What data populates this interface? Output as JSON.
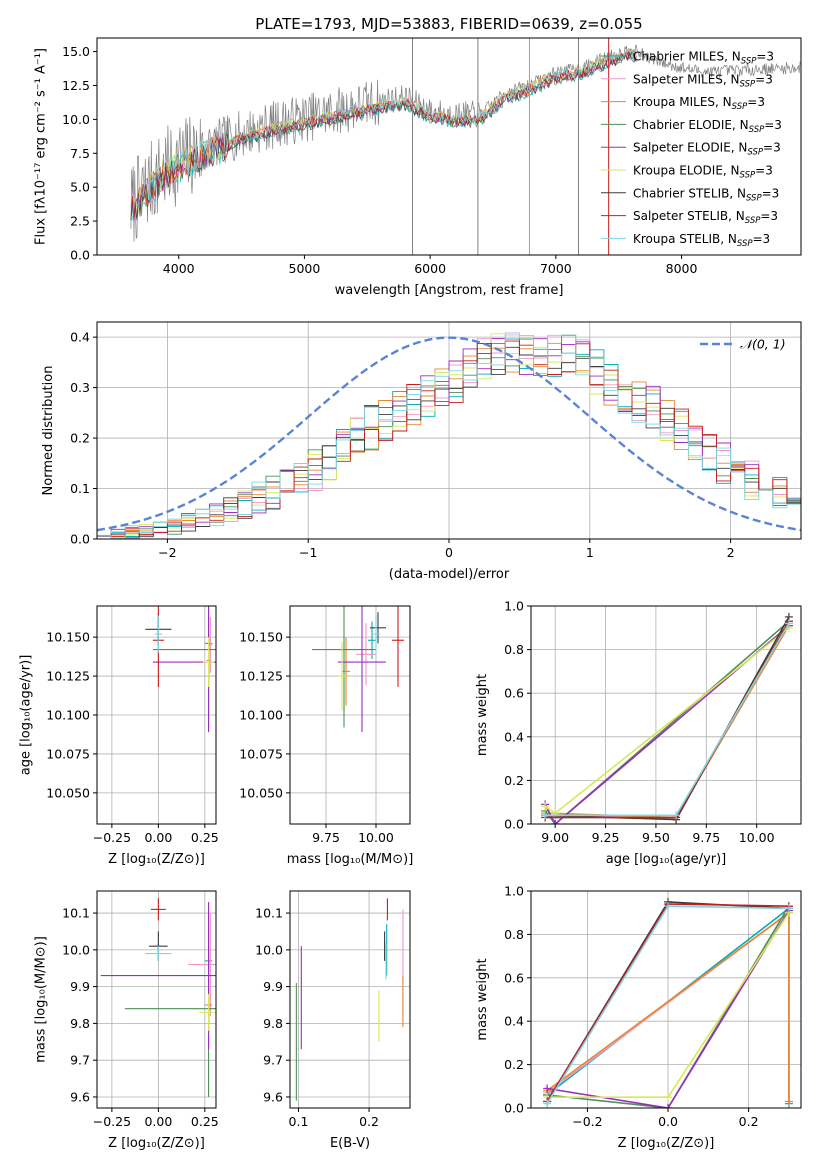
{
  "figure_title": "PLATE=1793, MJD=53883, FIBERID=0639, z=0.055",
  "legend_entries": [
    {
      "name": "Chabrier MILES",
      "suffix": "N",
      "sub": "SSP",
      "tail": "=3",
      "color": "#00ACB8"
    },
    {
      "name": "Salpeter MILES",
      "suffix": "N",
      "sub": "SSP",
      "tail": "=3",
      "color": "#F099C8"
    },
    {
      "name": "Kroupa MILES",
      "suffix": "N",
      "sub": "SSP",
      "tail": "=3",
      "color": "#E4892E"
    },
    {
      "name": "Chabrier ELODIE",
      "suffix": "N",
      "sub": "SSP",
      "tail": "=3",
      "color": "#4F8F55"
    },
    {
      "name": "Salpeter ELODIE",
      "suffix": "N",
      "sub": "SSP",
      "tail": "=3",
      "color": "#9B2DBE"
    },
    {
      "name": "Kroupa ELODIE",
      "suffix": "N",
      "sub": "SSP",
      "tail": "=3",
      "color": "#D8E858"
    },
    {
      "name": "Chabrier STELIB",
      "suffix": "N",
      "sub": "SSP",
      "tail": "=3",
      "color": "#3D3D3D"
    },
    {
      "name": "Salpeter STELIB",
      "suffix": "N",
      "sub": "SSP",
      "tail": "=3",
      "color": "#C81E1E"
    },
    {
      "name": "Kroupa STELIB",
      "suffix": "N",
      "sub": "SSP",
      "tail": "=3",
      "color": "#7FD6E0"
    }
  ],
  "chart_data": [
    {
      "id": "spectrum",
      "type": "line",
      "xlabel": "wavelength [Angstrom, rest frame]",
      "ylabel": "Flux [fλ10⁻¹⁷ erg cm⁻² s⁻¹ A⁻¹]",
      "xlim": [
        3350,
        8950
      ],
      "ylim": [
        0,
        16
      ],
      "xticks": [
        4000,
        5000,
        6000,
        7000,
        8000
      ],
      "xticklabels": [
        "4000",
        "5000",
        "6000",
        "7000",
        "8000"
      ],
      "yticks": [
        0,
        2.5,
        5,
        7.5,
        10,
        12.5,
        15
      ],
      "yticklabels": [
        "0.0",
        "2.5",
        "5.0",
        "7.5",
        "10.0",
        "12.5",
        "15.0"
      ],
      "data_color": "#808080",
      "model_color": "#7FD6E0",
      "spikes": [
        {
          "x": 5860,
          "color": "#808080"
        },
        {
          "x": 6380,
          "color": "#808080"
        },
        {
          "x": 6790,
          "color": "#C7A02E"
        },
        {
          "x": 7180,
          "color": "#808080"
        },
        {
          "x": 7420,
          "color": "#C81E1E"
        }
      ],
      "data_anchor_x": [
        3620,
        3700,
        3800,
        3900,
        4000,
        4200,
        4400,
        4600,
        4800,
        5000,
        5200,
        5400,
        5600,
        5800,
        6000,
        6200,
        6400,
        6600,
        6800,
        7000,
        7200,
        7400,
        7600,
        7800,
        8000,
        8200,
        8400,
        8600,
        8950
      ],
      "data_anchor_y": [
        3.6,
        4.5,
        5.5,
        6.3,
        6.9,
        7.8,
        8.6,
        9.2,
        9.7,
        10.1,
        10.5,
        10.9,
        11.3,
        11.6,
        10.6,
        10.3,
        10.4,
        12.0,
        12.6,
        13.5,
        13.8,
        14.6,
        15.2,
        14.3,
        13.8,
        13.5,
        13.6,
        13.7,
        13.8
      ]
    },
    {
      "id": "residuals",
      "type": "histogram",
      "xlabel": "(data-model)/error",
      "ylabel": "Normed distribution",
      "xlim": [
        -2.5,
        2.5
      ],
      "ylim": [
        0,
        0.43
      ],
      "xticks": [
        -2,
        -1,
        0,
        1,
        2
      ],
      "xticklabels": [
        "−2",
        "−1",
        "0",
        "1",
        "2"
      ],
      "yticks": [
        0,
        0.1,
        0.2,
        0.3,
        0.4
      ],
      "yticklabels": [
        "0.0",
        "0.1",
        "0.2",
        "0.3",
        "0.4"
      ],
      "bin_width": 0.1,
      "envelope_x": [
        -2.5,
        -2.0,
        -1.5,
        -1.0,
        -0.5,
        0.0,
        0.3,
        0.6,
        0.9,
        1.2,
        1.5,
        2.0,
        2.5
      ],
      "envelope_y": [
        0.005,
        0.022,
        0.06,
        0.13,
        0.23,
        0.3,
        0.37,
        0.37,
        0.36,
        0.3,
        0.25,
        0.14,
        0.07
      ],
      "legend_label": "𝒩(0, 1)",
      "normal_curve_color": "#5B84D6"
    },
    {
      "id": "z-vs-age",
      "type": "errorbar",
      "xlabel": "Z [log₁₀(Z/Z⊙)]",
      "ylabel": "age  [log₁₀(age/yr)]",
      "xlim": [
        -0.33,
        0.31
      ],
      "ylim": [
        10.03,
        10.17
      ],
      "xticks": [
        -0.25,
        0.0,
        0.25
      ],
      "xticklabels": [
        "−0.25",
        "0.00",
        "0.25"
      ],
      "yticks": [
        10.05,
        10.075,
        10.1,
        10.125,
        10.15
      ],
      "yticklabels": [
        "10.050",
        "10.075",
        "10.100",
        "10.125",
        "10.150"
      ],
      "points": [
        {
          "series": "Chabrier MILES",
          "x": 0.27,
          "y": 10.146,
          "xerr": 0.02,
          "yerr": 0.006
        },
        {
          "series": "Salpeter MILES",
          "x": 0.28,
          "y": 10.145,
          "xerr": 0.01,
          "yerr": 0.018
        },
        {
          "series": "Kroupa MILES",
          "x": 0.27,
          "y": 10.135,
          "xerr": 0.01,
          "yerr": 0.016
        },
        {
          "series": "Chabrier ELODIE",
          "x": 0.27,
          "y": 10.142,
          "xerr": 0.3,
          "yerr": 0.05
        },
        {
          "series": "Salpeter ELODIE",
          "x": 0.27,
          "y": 10.134,
          "xerr": 0.3,
          "yerr": 0.045
        },
        {
          "series": "Kroupa ELODIE",
          "x": 0.27,
          "y": 10.134,
          "xerr": 0.03,
          "yerr": 0.016
        },
        {
          "series": "Chabrier STELIB",
          "x": 0.0,
          "y": 10.155,
          "xerr": 0.07,
          "yerr": 0.01
        },
        {
          "series": "Salpeter STELIB",
          "x": 0.0,
          "y": 10.148,
          "xerr": 0.03,
          "yerr": 0.03
        },
        {
          "series": "Kroupa STELIB",
          "x": 0.0,
          "y": 10.152,
          "xerr": 0.02,
          "yerr": 0.012
        }
      ]
    },
    {
      "id": "mass-vs-age",
      "type": "errorbar",
      "xlabel": "mass [log₁₀(M/M⊙)]",
      "ylabel": "",
      "xlim": [
        9.57,
        10.17
      ],
      "ylim": [
        10.03,
        10.17
      ],
      "xticks": [
        9.75,
        10.0
      ],
      "xticklabels": [
        "9.75",
        "10.00"
      ],
      "yticks": [
        10.05,
        10.075,
        10.1,
        10.125,
        10.15
      ],
      "yticklabels": [
        "10.050",
        "10.075",
        "10.100",
        "10.125",
        "10.150"
      ],
      "points": [
        {
          "series": "Chabrier MILES",
          "x": 9.98,
          "y": 10.148,
          "xerr": 0.02,
          "yerr": 0.012
        },
        {
          "series": "Salpeter MILES",
          "x": 9.95,
          "y": 10.139,
          "xerr": 0.05,
          "yerr": 0.02
        },
        {
          "series": "Kroupa MILES",
          "x": 9.85,
          "y": 10.128,
          "xerr": 0.02,
          "yerr": 0.022
        },
        {
          "series": "Chabrier ELODIE",
          "x": 9.84,
          "y": 10.142,
          "xerr": 0.16,
          "yerr": 0.05
        },
        {
          "series": "Salpeter ELODIE",
          "x": 9.93,
          "y": 10.134,
          "xerr": 0.12,
          "yerr": 0.045
        },
        {
          "series": "Kroupa ELODIE",
          "x": 9.83,
          "y": 10.125,
          "xerr": 0.02,
          "yerr": 0.022
        },
        {
          "series": "Chabrier STELIB",
          "x": 10.01,
          "y": 10.156,
          "xerr": 0.04,
          "yerr": 0.01
        },
        {
          "series": "Salpeter STELIB",
          "x": 10.11,
          "y": 10.148,
          "xerr": 0.03,
          "yerr": 0.03
        },
        {
          "series": "Kroupa STELIB",
          "x": 10.0,
          "y": 10.152,
          "xerr": 0.02,
          "yerr": 0.012
        }
      ]
    },
    {
      "id": "age-vs-weight",
      "type": "line",
      "xlabel": "age  [log₁₀(age/yr)]",
      "ylabel": "mass weight",
      "xlim": [
        8.88,
        10.22
      ],
      "ylim": [
        0,
        1
      ],
      "xticks": [
        9.0,
        9.25,
        9.5,
        9.75,
        10.0
      ],
      "xticklabels": [
        "9.00",
        "9.25",
        "9.50",
        "9.75",
        "10.00"
      ],
      "yticks": [
        0,
        0.2,
        0.4,
        0.6,
        0.8,
        1.0
      ],
      "yticklabels": [
        "0.0",
        "0.2",
        "0.4",
        "0.6",
        "0.8",
        "1.0"
      ],
      "series": [
        {
          "name": "Chabrier MILES",
          "x": [
            8.95,
            9.6,
            10.16
          ],
          "y": [
            0.03,
            0.03,
            0.93
          ]
        },
        {
          "name": "Salpeter MILES",
          "x": [
            8.95,
            9.6,
            10.16
          ],
          "y": [
            0.04,
            0.03,
            0.92
          ]
        },
        {
          "name": "Kroupa MILES",
          "x": [
            8.95,
            9.6,
            10.16
          ],
          "y": [
            0.05,
            0.03,
            0.91
          ]
        },
        {
          "name": "Chabrier ELODIE",
          "x": [
            8.95,
            9.0,
            10.16
          ],
          "y": [
            0.06,
            0.0,
            0.93
          ]
        },
        {
          "name": "Salpeter ELODIE",
          "x": [
            8.95,
            9.0,
            10.16
          ],
          "y": [
            0.09,
            0.0,
            0.91
          ]
        },
        {
          "name": "Kroupa ELODIE",
          "x": [
            8.95,
            9.0,
            10.16
          ],
          "y": [
            0.08,
            0.05,
            0.9
          ]
        },
        {
          "name": "Chabrier STELIB",
          "x": [
            8.95,
            9.6,
            10.16
          ],
          "y": [
            0.04,
            0.02,
            0.95
          ]
        },
        {
          "name": "Salpeter STELIB",
          "x": [
            8.95,
            9.6,
            10.16
          ],
          "y": [
            0.03,
            0.03,
            0.93
          ]
        },
        {
          "name": "Kroupa STELIB",
          "x": [
            8.95,
            9.6,
            10.16
          ],
          "y": [
            0.04,
            0.04,
            0.92
          ]
        }
      ]
    },
    {
      "id": "z-vs-mass",
      "type": "errorbar",
      "xlabel": "Z [log₁₀(Z/Z⊙)]",
      "ylabel": "mass [log₁₀(M/M⊙)]",
      "xlim": [
        -0.33,
        0.31
      ],
      "ylim": [
        9.57,
        10.16
      ],
      "xticks": [
        -0.25,
        0.0,
        0.25
      ],
      "xticklabels": [
        "−0.25",
        "0.00",
        "0.25"
      ],
      "yticks": [
        9.6,
        9.7,
        9.8,
        9.9,
        10.0,
        10.1
      ],
      "yticklabels": [
        "9.6",
        "9.7",
        "9.8",
        "9.9",
        "10.0",
        "10.1"
      ],
      "points": [
        {
          "series": "Chabrier MILES",
          "x": 0.27,
          "y": 9.97,
          "xerr": 0.02,
          "yerr": 0.03
        },
        {
          "series": "Salpeter MILES",
          "x": 0.28,
          "y": 9.96,
          "xerr": 0.12,
          "yerr": 0.14
        },
        {
          "series": "Kroupa MILES",
          "x": 0.27,
          "y": 9.85,
          "xerr": 0.02,
          "yerr": 0.05
        },
        {
          "series": "Chabrier ELODIE",
          "x": 0.27,
          "y": 9.84,
          "xerr": 0.45,
          "yerr": 0.24
        },
        {
          "series": "Salpeter ELODIE",
          "x": 0.27,
          "y": 9.93,
          "xerr": 0.58,
          "yerr": 0.2
        },
        {
          "series": "Kroupa ELODIE",
          "x": 0.27,
          "y": 9.83,
          "xerr": 0.05,
          "yerr": 0.05
        },
        {
          "series": "Chabrier STELIB",
          "x": 0.0,
          "y": 10.01,
          "xerr": 0.05,
          "yerr": 0.04
        },
        {
          "series": "Salpeter STELIB",
          "x": 0.0,
          "y": 10.11,
          "xerr": 0.04,
          "yerr": 0.03
        },
        {
          "series": "Kroupa STELIB",
          "x": 0.0,
          "y": 9.99,
          "xerr": 0.07,
          "yerr": 0.02
        }
      ]
    },
    {
      "id": "ebv-vs-mass",
      "type": "errorbar",
      "xlabel": "E(B-V)",
      "ylabel": "",
      "xlim": [
        0.088,
        0.258
      ],
      "ylim": [
        9.57,
        10.16
      ],
      "xticks": [
        0.1,
        0.2
      ],
      "xticklabels": [
        "0.1",
        "0.2"
      ],
      "yticks": [
        9.6,
        9.7,
        9.8,
        9.9,
        10.0,
        10.1
      ],
      "yticklabels": [
        "9.6",
        "9.7",
        "9.8",
        "9.9",
        "10.0",
        "10.1"
      ],
      "points": [
        {
          "series": "Chabrier MILES",
          "x": 0.225,
          "y": 10.0,
          "xerr": 0,
          "yerr": 0.07
        },
        {
          "series": "Salpeter MILES",
          "x": 0.248,
          "y": 9.96,
          "xerr": 0,
          "yerr": 0.15
        },
        {
          "series": "Kroupa MILES",
          "x": 0.248,
          "y": 9.86,
          "xerr": 0,
          "yerr": 0.07
        },
        {
          "series": "Chabrier ELODIE",
          "x": 0.097,
          "y": 9.75,
          "xerr": 0,
          "yerr": 0.16
        },
        {
          "series": "Salpeter ELODIE",
          "x": 0.104,
          "y": 9.87,
          "xerr": 0,
          "yerr": 0.14
        },
        {
          "series": "Kroupa ELODIE",
          "x": 0.214,
          "y": 9.82,
          "xerr": 0,
          "yerr": 0.07
        },
        {
          "series": "Chabrier STELIB",
          "x": 0.222,
          "y": 10.01,
          "xerr": 0,
          "yerr": 0.04
        },
        {
          "series": "Salpeter STELIB",
          "x": 0.226,
          "y": 10.11,
          "xerr": 0,
          "yerr": 0.03
        },
        {
          "series": "Kroupa STELIB",
          "x": 0.224,
          "y": 9.97,
          "xerr": 0,
          "yerr": 0.05
        }
      ]
    },
    {
      "id": "z-vs-weight",
      "type": "line",
      "xlabel": "Z [log₁₀(Z/Z⊙)]",
      "ylabel": "mass weight",
      "xlim": [
        -0.34,
        0.33
      ],
      "ylim": [
        0,
        1
      ],
      "xticks": [
        -0.2,
        0.0,
        0.2
      ],
      "xticklabels": [
        "−0.2",
        "0.0",
        "0.2"
      ],
      "yticks": [
        0,
        0.2,
        0.4,
        0.6,
        0.8,
        1.0
      ],
      "yticklabels": [
        "0.0",
        "0.2",
        "0.4",
        "0.6",
        "0.8",
        "1.0"
      ],
      "series": [
        {
          "name": "Chabrier MILES",
          "x": [
            -0.3,
            0.3,
            0.3
          ],
          "y": [
            0.06,
            0.92,
            0.02
          ]
        },
        {
          "name": "Salpeter MILES",
          "x": [
            -0.3,
            0.3,
            0.3
          ],
          "y": [
            0.07,
            0.9,
            0.03
          ]
        },
        {
          "name": "Kroupa MILES",
          "x": [
            -0.3,
            0.3,
            0.3
          ],
          "y": [
            0.08,
            0.9,
            0.03
          ]
        },
        {
          "name": "Chabrier ELODIE",
          "x": [
            -0.3,
            0.0,
            0.3
          ],
          "y": [
            0.06,
            0.0,
            0.93
          ]
        },
        {
          "name": "Salpeter ELODIE",
          "x": [
            -0.3,
            0.0,
            0.3
          ],
          "y": [
            0.09,
            0.0,
            0.91
          ]
        },
        {
          "name": "Kroupa ELODIE",
          "x": [
            -0.3,
            0.0,
            0.3
          ],
          "y": [
            0.05,
            0.05,
            0.9
          ]
        },
        {
          "name": "Chabrier STELIB",
          "x": [
            -0.3,
            0.0,
            0.3
          ],
          "y": [
            0.03,
            0.95,
            0.92
          ]
        },
        {
          "name": "Salpeter STELIB",
          "x": [
            -0.3,
            0.0,
            0.3
          ],
          "y": [
            0.03,
            0.94,
            0.93
          ]
        },
        {
          "name": "Kroupa STELIB",
          "x": [
            -0.3,
            0.0,
            0.3
          ],
          "y": [
            0.02,
            0.93,
            0.92
          ]
        }
      ]
    }
  ]
}
